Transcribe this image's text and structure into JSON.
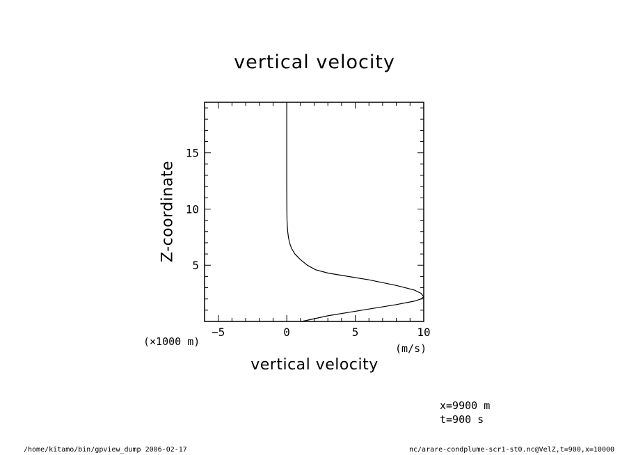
{
  "chart_data": {
    "type": "line",
    "title": "vertical velocity",
    "xlabel": "vertical velocity",
    "ylabel": "Z-coordinate",
    "x_unit": "(m/s)",
    "y_unit": "(×1000 m)",
    "xlim": [
      -6,
      10
    ],
    "ylim": [
      0,
      19.5
    ],
    "x_ticks": [
      -5,
      0,
      5,
      10
    ],
    "x_tick_labels": [
      "−5",
      "0",
      "5",
      "10"
    ],
    "y_ticks": [
      5,
      10,
      15
    ],
    "y_tick_labels": [
      "5",
      "10",
      "15"
    ],
    "grid": false,
    "series": [
      {
        "x": [
          1.1,
          3.0,
          5.5,
          8.0,
          9.3,
          9.8,
          10.0,
          9.8,
          9.3,
          8.0,
          6.0,
          4.5,
          3.0,
          2.1,
          1.5,
          1.0,
          0.6,
          0.35,
          0.2,
          0.12,
          0.07,
          0.04,
          0.02,
          0.01,
          0.0,
          0.0,
          0.0
        ],
        "y": [
          0.0,
          0.5,
          1.0,
          1.5,
          1.8,
          2.0,
          2.2,
          2.5,
          2.8,
          3.2,
          3.7,
          4.0,
          4.3,
          4.6,
          5.0,
          5.5,
          6.0,
          6.5,
          7.0,
          7.5,
          8.0,
          8.5,
          9.0,
          10.0,
          12.0,
          15.0,
          19.5
        ]
      }
    ]
  },
  "annotations": {
    "line1": "x=9900 m",
    "line2": "t=900 s"
  },
  "footer": {
    "left": "/home/kitamo/bin/gpview_dump  2006-02-17",
    "right": "nc/arare-condplume-scr1-st0.nc@VelZ,t=900,x=10000"
  }
}
